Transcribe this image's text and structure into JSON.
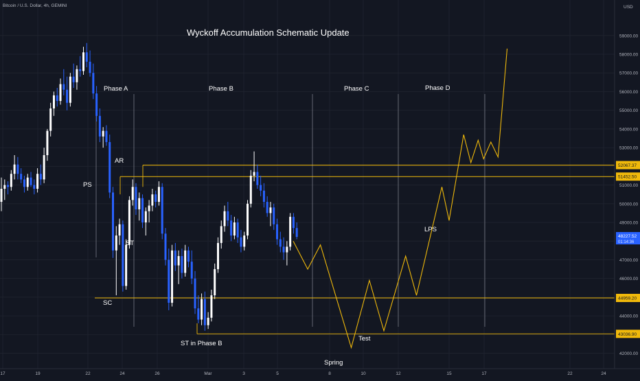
{
  "header": {
    "symbol_title": "Bitcoin / U.S. Dollar, 4h, GEMINI",
    "currency": "USD"
  },
  "chart_data": {
    "type": "candlestick",
    "title": "Wyckoff Accumulation Schematic Update",
    "y_ticks": [
      42000,
      43000,
      44000,
      45000,
      46000,
      47000,
      48000,
      49000,
      50000,
      51000,
      52000,
      53000,
      54000,
      55000,
      56000,
      57000,
      58000,
      59000
    ],
    "ylim": [
      41800,
      59800
    ],
    "x_tick_labels": [
      "17",
      "19",
      "22",
      "24",
      "26",
      "Mar",
      "3",
      "5",
      "8",
      "10",
      "12",
      "15",
      "17",
      "22",
      "24"
    ],
    "price_levels": [
      {
        "value": 52067.37,
        "label": "52067.37"
      },
      {
        "value": 51452.5,
        "label": "51452.50"
      },
      {
        "value": 44959.2,
        "label": "44959.20"
      },
      {
        "value": 43036.9,
        "label": "43036.90"
      }
    ],
    "current_price": {
      "value": 48227.52,
      "label": "48227.52",
      "sub_label": "01:14:36"
    },
    "colors": {
      "background": "#131722",
      "up_candle": "#ffffff",
      "down_candle": "#2962ff",
      "projection": "#f0b90b",
      "level_line": "#f0b90b",
      "current_price": "#2962ff",
      "text": "#d1d4dc"
    },
    "phase_labels": [
      "Phase A",
      "Phase B",
      "Phase C",
      "Phase D"
    ],
    "event_labels": [
      "PS",
      "AR",
      "SC",
      "ST",
      "ST in Phase B",
      "Spring",
      "Test",
      "LPS"
    ],
    "projection_path": [
      [
        0.0,
        48000
      ],
      [
        0.8,
        46500
      ],
      [
        1.5,
        47800
      ],
      [
        3.2,
        42300
      ],
      [
        4.2,
        45900
      ],
      [
        5.0,
        43200
      ],
      [
        6.2,
        47200
      ],
      [
        6.8,
        45100
      ],
      [
        8.2,
        50900
      ],
      [
        8.6,
        49100
      ],
      [
        9.4,
        53700
      ],
      [
        9.8,
        52200
      ],
      [
        10.2,
        53400
      ],
      [
        10.5,
        52400
      ],
      [
        10.9,
        53300
      ],
      [
        11.3,
        52500
      ],
      [
        11.8,
        58300
      ]
    ],
    "candles": [
      {
        "o": 50100,
        "h": 51400,
        "l": 49600,
        "c": 50800
      },
      {
        "o": 50800,
        "h": 51300,
        "l": 50200,
        "c": 51000
      },
      {
        "o": 51000,
        "h": 51200,
        "l": 50500,
        "c": 50900
      },
      {
        "o": 50900,
        "h": 51800,
        "l": 50700,
        "c": 51600
      },
      {
        "o": 51600,
        "h": 52600,
        "l": 51300,
        "c": 52100
      },
      {
        "o": 52100,
        "h": 52500,
        "l": 51300,
        "c": 51600
      },
      {
        "o": 51600,
        "h": 51900,
        "l": 51100,
        "c": 51300
      },
      {
        "o": 51300,
        "h": 51500,
        "l": 50600,
        "c": 50900
      },
      {
        "o": 50900,
        "h": 51600,
        "l": 50700,
        "c": 51400
      },
      {
        "o": 51400,
        "h": 51700,
        "l": 50900,
        "c": 51000
      },
      {
        "o": 51000,
        "h": 51300,
        "l": 50500,
        "c": 50800
      },
      {
        "o": 50800,
        "h": 51900,
        "l": 50600,
        "c": 51600
      },
      {
        "o": 51600,
        "h": 52100,
        "l": 51000,
        "c": 51300
      },
      {
        "o": 51300,
        "h": 53000,
        "l": 51100,
        "c": 52600
      },
      {
        "o": 52600,
        "h": 54000,
        "l": 52300,
        "c": 53900
      },
      {
        "o": 53900,
        "h": 55400,
        "l": 53600,
        "c": 55100
      },
      {
        "o": 55100,
        "h": 56000,
        "l": 54700,
        "c": 55800
      },
      {
        "o": 55800,
        "h": 56200,
        "l": 55200,
        "c": 55500
      },
      {
        "o": 55500,
        "h": 56700,
        "l": 55300,
        "c": 56400
      },
      {
        "o": 56400,
        "h": 57200,
        "l": 55800,
        "c": 56100
      },
      {
        "o": 56100,
        "h": 56800,
        "l": 55000,
        "c": 55400
      },
      {
        "o": 55400,
        "h": 57000,
        "l": 55200,
        "c": 56800
      },
      {
        "o": 56800,
        "h": 57500,
        "l": 56200,
        "c": 56500
      },
      {
        "o": 56500,
        "h": 57400,
        "l": 56100,
        "c": 57200
      },
      {
        "o": 57200,
        "h": 57900,
        "l": 56800,
        "c": 57100
      },
      {
        "o": 57100,
        "h": 58400,
        "l": 56900,
        "c": 58100
      },
      {
        "o": 58100,
        "h": 58600,
        "l": 57300,
        "c": 57600
      },
      {
        "o": 57600,
        "h": 58200,
        "l": 56800,
        "c": 57000
      },
      {
        "o": 57000,
        "h": 57500,
        "l": 55600,
        "c": 55900
      },
      {
        "o": 55900,
        "h": 56300,
        "l": 54400,
        "c": 54700
      },
      {
        "o": 54700,
        "h": 55100,
        "l": 53300,
        "c": 53600
      },
      {
        "o": 53600,
        "h": 54100,
        "l": 53000,
        "c": 53900
      },
      {
        "o": 53900,
        "h": 54200,
        "l": 53100,
        "c": 53300
      },
      {
        "o": 53300,
        "h": 53700,
        "l": 50300,
        "c": 50600
      },
      {
        "o": 50600,
        "h": 50900,
        "l": 47100,
        "c": 47500
      },
      {
        "o": 47500,
        "h": 48800,
        "l": 45100,
        "c": 48300
      },
      {
        "o": 48300,
        "h": 49200,
        "l": 47800,
        "c": 48900
      },
      {
        "o": 48900,
        "h": 49100,
        "l": 45300,
        "c": 45600
      },
      {
        "o": 45600,
        "h": 48100,
        "l": 45400,
        "c": 47800
      },
      {
        "o": 47800,
        "h": 50400,
        "l": 47600,
        "c": 50200
      },
      {
        "o": 50200,
        "h": 51300,
        "l": 49900,
        "c": 50900
      },
      {
        "o": 50900,
        "h": 51100,
        "l": 49400,
        "c": 49700
      },
      {
        "o": 49700,
        "h": 50600,
        "l": 49100,
        "c": 50300
      },
      {
        "o": 50300,
        "h": 50500,
        "l": 48700,
        "c": 49000
      },
      {
        "o": 49000,
        "h": 49800,
        "l": 48300,
        "c": 49600
      },
      {
        "o": 49600,
        "h": 50200,
        "l": 49000,
        "c": 49900
      },
      {
        "o": 49900,
        "h": 50800,
        "l": 49600,
        "c": 50500
      },
      {
        "o": 50500,
        "h": 50700,
        "l": 49800,
        "c": 50100
      },
      {
        "o": 50100,
        "h": 51200,
        "l": 49900,
        "c": 50900
      },
      {
        "o": 50900,
        "h": 51100,
        "l": 48100,
        "c": 48400
      },
      {
        "o": 48400,
        "h": 48700,
        "l": 46700,
        "c": 47000
      },
      {
        "o": 47000,
        "h": 47600,
        "l": 44300,
        "c": 44700
      },
      {
        "o": 44700,
        "h": 47800,
        "l": 44500,
        "c": 47500
      },
      {
        "o": 47500,
        "h": 47900,
        "l": 46400,
        "c": 46700
      },
      {
        "o": 46700,
        "h": 47500,
        "l": 45700,
        "c": 47200
      },
      {
        "o": 47200,
        "h": 47600,
        "l": 46000,
        "c": 46300
      },
      {
        "o": 46300,
        "h": 47800,
        "l": 46100,
        "c": 47500
      },
      {
        "o": 47500,
        "h": 47700,
        "l": 46600,
        "c": 46900
      },
      {
        "o": 46900,
        "h": 47500,
        "l": 45700,
        "c": 46000
      },
      {
        "o": 46000,
        "h": 46400,
        "l": 44100,
        "c": 44400
      },
      {
        "o": 44400,
        "h": 45100,
        "l": 43600,
        "c": 43800
      },
      {
        "o": 43800,
        "h": 45200,
        "l": 43500,
        "c": 44900
      },
      {
        "o": 44900,
        "h": 45300,
        "l": 43200,
        "c": 43500
      },
      {
        "o": 43500,
        "h": 44200,
        "l": 43300,
        "c": 43900
      },
      {
        "o": 43900,
        "h": 45400,
        "l": 43700,
        "c": 45100
      },
      {
        "o": 45100,
        "h": 46800,
        "l": 44900,
        "c": 46500
      },
      {
        "o": 46500,
        "h": 48200,
        "l": 46300,
        "c": 47900
      },
      {
        "o": 47900,
        "h": 49100,
        "l": 47600,
        "c": 48800
      },
      {
        "o": 48800,
        "h": 49900,
        "l": 48500,
        "c": 49600
      },
      {
        "o": 49600,
        "h": 50100,
        "l": 48800,
        "c": 49100
      },
      {
        "o": 49100,
        "h": 49400,
        "l": 48000,
        "c": 48300
      },
      {
        "o": 48300,
        "h": 49300,
        "l": 48100,
        "c": 49000
      },
      {
        "o": 49000,
        "h": 49200,
        "l": 47900,
        "c": 48200
      },
      {
        "o": 48200,
        "h": 48600,
        "l": 47400,
        "c": 47700
      },
      {
        "o": 47700,
        "h": 48500,
        "l": 47500,
        "c": 48300
      },
      {
        "o": 48300,
        "h": 50200,
        "l": 48100,
        "c": 50000
      },
      {
        "o": 50000,
        "h": 51800,
        "l": 49800,
        "c": 51500
      },
      {
        "o": 51500,
        "h": 52800,
        "l": 51200,
        "c": 51700
      },
      {
        "o": 51700,
        "h": 52100,
        "l": 50800,
        "c": 51000
      },
      {
        "o": 51000,
        "h": 51500,
        "l": 50400,
        "c": 50700
      },
      {
        "o": 50700,
        "h": 51100,
        "l": 49800,
        "c": 50100
      },
      {
        "o": 50100,
        "h": 50400,
        "l": 49300,
        "c": 49500
      },
      {
        "o": 49500,
        "h": 50100,
        "l": 48800,
        "c": 49800
      },
      {
        "o": 49800,
        "h": 50000,
        "l": 48600,
        "c": 48900
      },
      {
        "o": 48900,
        "h": 49200,
        "l": 47800,
        "c": 48100
      },
      {
        "o": 48100,
        "h": 48500,
        "l": 47400,
        "c": 47700
      },
      {
        "o": 47700,
        "h": 48200,
        "l": 47000,
        "c": 47400
      },
      {
        "o": 47400,
        "h": 48000,
        "l": 46700,
        "c": 47700
      },
      {
        "o": 47700,
        "h": 49500,
        "l": 47500,
        "c": 49300
      },
      {
        "o": 49300,
        "h": 49500,
        "l": 48400,
        "c": 48700
      },
      {
        "o": 48700,
        "h": 49000,
        "l": 48100,
        "c": 48227
      }
    ]
  }
}
